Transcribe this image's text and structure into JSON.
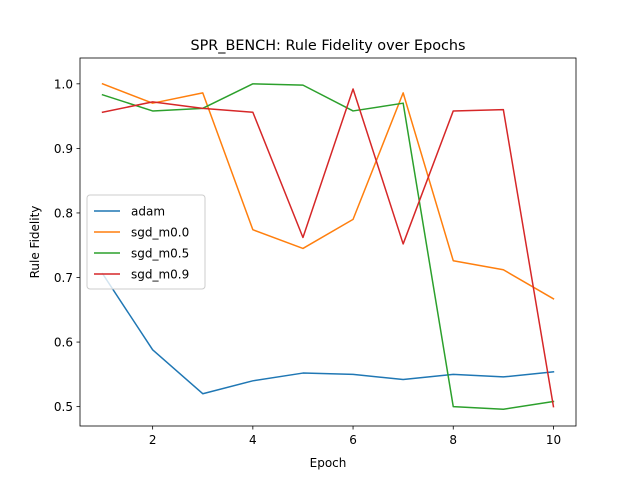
{
  "chart_data": {
    "type": "line",
    "title": "SPR_BENCH: Rule Fidelity over Epochs",
    "xlabel": "Epoch",
    "ylabel": "Rule Fidelity",
    "xlim": [
      0.55,
      10.45
    ],
    "ylim": [
      0.47,
      1.04
    ],
    "xticks": [
      2,
      4,
      6,
      8,
      10
    ],
    "yticks": [
      0.5,
      0.6,
      0.7,
      0.8,
      0.9,
      1.0
    ],
    "ytick_labels": [
      "0.5",
      "0.6",
      "0.7",
      "0.8",
      "0.9",
      "1.0"
    ],
    "grid": false,
    "legend_position": "center-left",
    "x": [
      1,
      2,
      3,
      4,
      5,
      6,
      7,
      8,
      9,
      10
    ],
    "series": [
      {
        "name": "adam",
        "color": "#1f77b4",
        "values": [
          0.706,
          0.588,
          0.52,
          0.54,
          0.552,
          0.55,
          0.542,
          0.55,
          0.546,
          0.554
        ]
      },
      {
        "name": "sgd_m0.0",
        "color": "#ff7f0e",
        "values": [
          1.0,
          0.97,
          0.986,
          0.774,
          0.745,
          0.79,
          0.986,
          0.726,
          0.712,
          0.667
        ]
      },
      {
        "name": "sgd_m0.5",
        "color": "#2ca02c",
        "values": [
          0.983,
          0.958,
          0.962,
          1.0,
          0.998,
          0.958,
          0.97,
          0.5,
          0.496,
          0.508
        ]
      },
      {
        "name": "sgd_m0.9",
        "color": "#d62728",
        "values": [
          0.956,
          0.972,
          0.962,
          0.956,
          0.762,
          0.992,
          0.752,
          0.958,
          0.96,
          0.5
        ]
      }
    ]
  }
}
